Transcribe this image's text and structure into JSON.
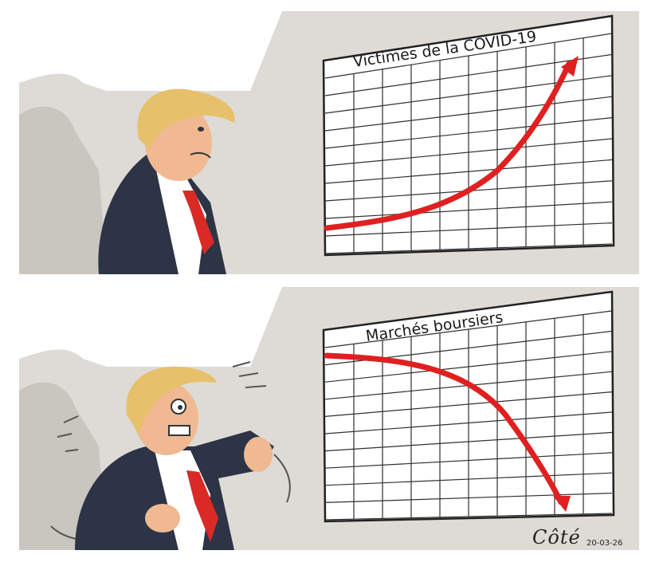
{
  "panels": [
    {
      "chart_title": "Victimes de la COVID-19",
      "trend": "rising",
      "line_color": "#e02020"
    },
    {
      "chart_title": "Marchés boursiers",
      "trend": "falling",
      "line_color": "#e02020"
    }
  ],
  "signature": {
    "artist": "Côté",
    "date": "20-03-26"
  },
  "colors": {
    "wall": "#dedbd6",
    "wall_shadow": "#c9c5bf",
    "suit": "#2c3446",
    "tie": "#d92a25",
    "hair": "#e6c06a",
    "skin": "#f0b992",
    "grid": "#303030"
  }
}
